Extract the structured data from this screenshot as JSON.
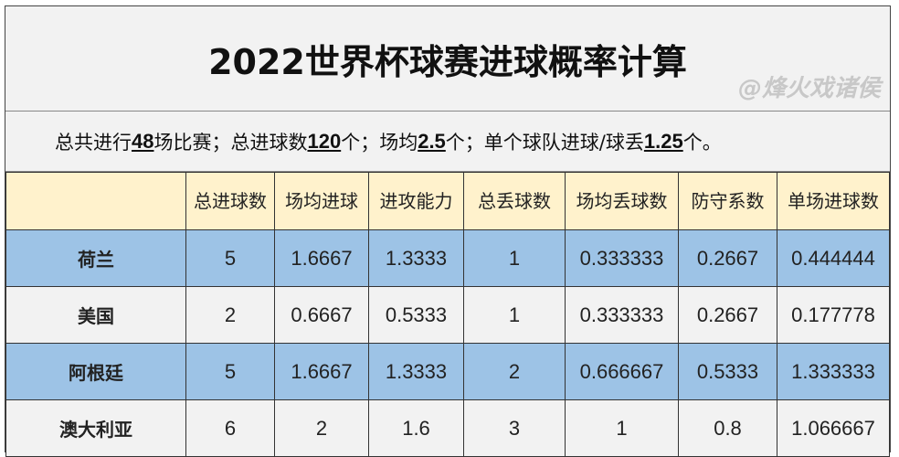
{
  "title": "2022世界杯球赛进球概率计算",
  "summary": {
    "p1": "总共进行",
    "games": "48",
    "p2": "场比赛；总进球数",
    "goals": "120",
    "p3": "个；场均",
    "avg": "2.5",
    "p4": "个；单个球队进球/球丢",
    "team_avg": "1.25",
    "p5": "个。"
  },
  "headers": [
    "",
    "总进球数",
    "场均进球",
    "进攻能力",
    "总丢球数",
    "场均丢球数",
    "防守系数",
    "单场进球数"
  ],
  "rows": [
    [
      "荷兰",
      "5",
      "1.6667",
      "1.3333",
      "1",
      "0.333333",
      "0.2667",
      "0.444444"
    ],
    [
      "美国",
      "2",
      "0.6667",
      "0.5333",
      "1",
      "0.333333",
      "0.2667",
      "0.177778"
    ],
    [
      "阿根廷",
      "5",
      "1.6667",
      "1.3333",
      "2",
      "0.666667",
      "0.5333",
      "1.333333"
    ],
    [
      "澳大利亚",
      "6",
      "2",
      "1.6",
      "3",
      "1",
      "0.8",
      "1.066667"
    ]
  ],
  "watermark": "@烽火戏诸侯",
  "colors": {
    "header": "#fff2cc",
    "blue_row": "#9dc3e6",
    "gray_row": "#f2f2f2"
  }
}
